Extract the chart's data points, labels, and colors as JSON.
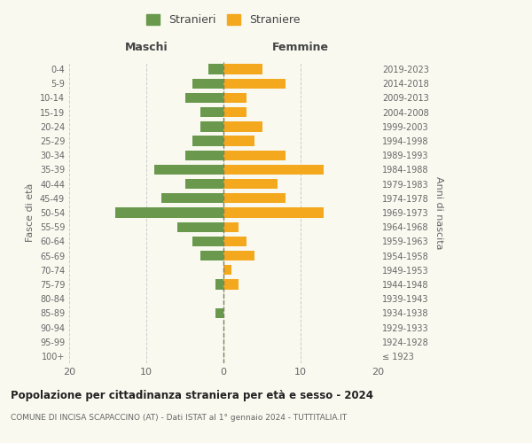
{
  "age_groups": [
    "100+",
    "95-99",
    "90-94",
    "85-89",
    "80-84",
    "75-79",
    "70-74",
    "65-69",
    "60-64",
    "55-59",
    "50-54",
    "45-49",
    "40-44",
    "35-39",
    "30-34",
    "25-29",
    "20-24",
    "15-19",
    "10-14",
    "5-9",
    "0-4"
  ],
  "birth_years": [
    "≤ 1923",
    "1924-1928",
    "1929-1933",
    "1934-1938",
    "1939-1943",
    "1944-1948",
    "1949-1953",
    "1954-1958",
    "1959-1963",
    "1964-1968",
    "1969-1973",
    "1974-1978",
    "1979-1983",
    "1984-1988",
    "1989-1993",
    "1994-1998",
    "1999-2003",
    "2004-2008",
    "2009-2013",
    "2014-2018",
    "2019-2023"
  ],
  "males": [
    0,
    0,
    0,
    1,
    0,
    1,
    0,
    3,
    4,
    6,
    14,
    8,
    5,
    9,
    5,
    4,
    3,
    3,
    5,
    4,
    2
  ],
  "females": [
    0,
    0,
    0,
    0,
    0,
    2,
    1,
    4,
    3,
    2,
    13,
    8,
    7,
    13,
    8,
    4,
    5,
    3,
    3,
    8,
    5
  ],
  "male_color": "#6a994e",
  "female_color": "#f4a81d",
  "background_color": "#f9f9f0",
  "grid_color": "#cccccc",
  "center_line_color": "#808060",
  "xlim": 20,
  "title": "Popolazione per cittadinanza straniera per età e sesso - 2024",
  "subtitle": "COMUNE DI INCISA SCAPACCINO (AT) - Dati ISTAT al 1° gennaio 2024 - TUTTITALIA.IT",
  "left_header": "Maschi",
  "right_header": "Femmine",
  "left_axis_label": "Fasce di età",
  "right_axis_label": "Anni di nascita",
  "legend_male": "Stranieri",
  "legend_female": "Straniere"
}
